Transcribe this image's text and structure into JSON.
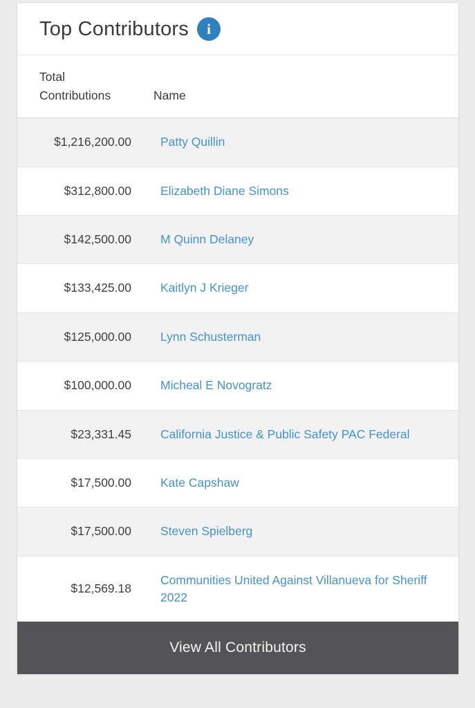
{
  "card": {
    "title": "Top Contributors",
    "info_icon": {
      "name": "info-circle-icon",
      "glyph": "i",
      "bg_color": "#2e80bf"
    },
    "columns": {
      "amount": "Total Contributions",
      "name": "Name"
    },
    "rows": [
      {
        "amount": "$1,216,200.00",
        "name": "Patty Quillin"
      },
      {
        "amount": "$312,800.00",
        "name": "Elizabeth Diane Simons"
      },
      {
        "amount": "$142,500.00",
        "name": "M Quinn Delaney"
      },
      {
        "amount": "$133,425.00",
        "name": "Kaitlyn J Krieger"
      },
      {
        "amount": "$125,000.00",
        "name": "Lynn Schusterman"
      },
      {
        "amount": "$100,000.00",
        "name": "Micheal E Novogratz"
      },
      {
        "amount": "$23,331.45",
        "name": "California Justice & Public Safety PAC Federal"
      },
      {
        "amount": "$17,500.00",
        "name": "Kate Capshaw"
      },
      {
        "amount": "$17,500.00",
        "name": "Steven Spielberg"
      },
      {
        "amount": "$12,569.18",
        "name": "Communities United Against Villanueva for Sheriff 2022"
      }
    ],
    "footer_button_label": "View All Contributors"
  },
  "colors": {
    "link": "#4592cc",
    "info_icon_bg": "#2e80bf",
    "button_bg": "#545456",
    "row_stripe": "#f2f2f2",
    "page_bg": "#ececec",
    "text": "#3a3a3a"
  }
}
